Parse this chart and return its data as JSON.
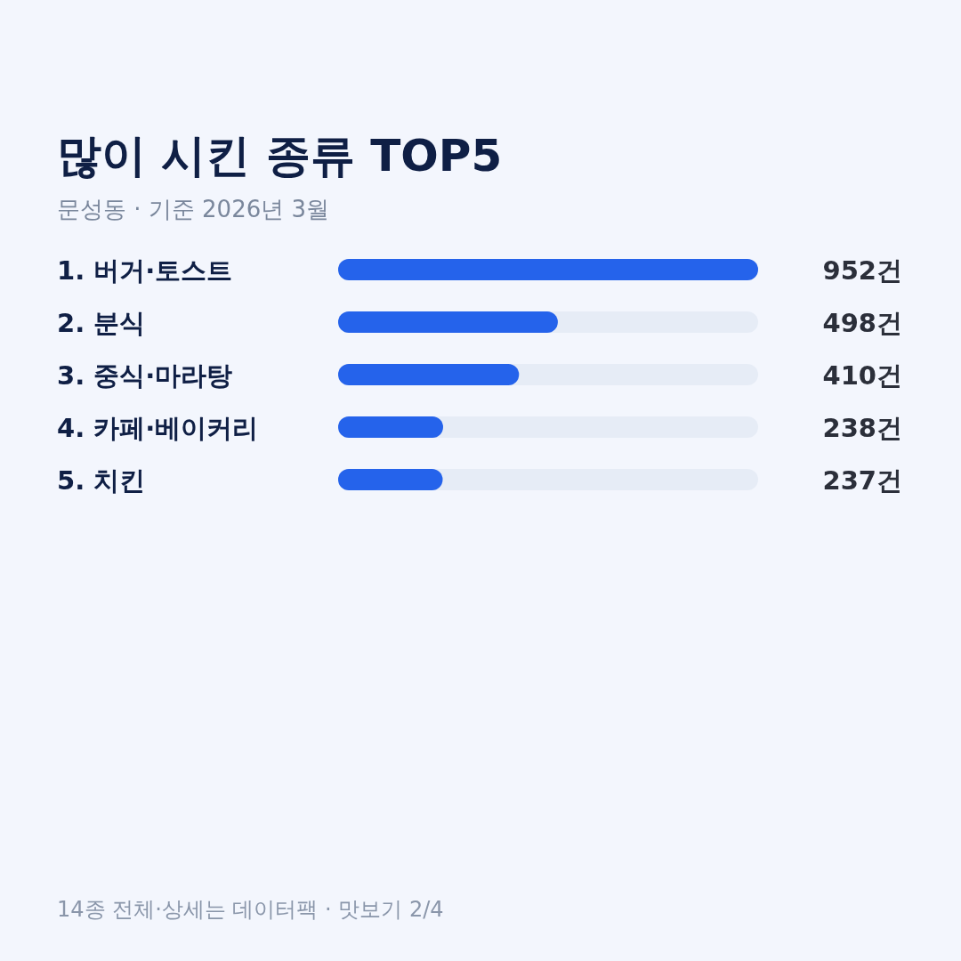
{
  "chart_data": {
    "type": "bar",
    "orientation": "horizontal",
    "title": "많이 시킨 종류 TOP5",
    "subtitle": "문성동 · 기준 2026년 3월",
    "categories": [
      "1. 버거·토스트",
      "2. 분식",
      "3. 중식·마라탕",
      "4. 카페·베이커리",
      "5. 치킨"
    ],
    "values": [
      952,
      498,
      410,
      238,
      237
    ],
    "value_labels": [
      "952건",
      "498건",
      "410건",
      "238건",
      "237건"
    ],
    "color": "#2563eb",
    "annotations": [
      "14종 전체·상세는 데이터팩 · 맛보기 2/4"
    ]
  }
}
